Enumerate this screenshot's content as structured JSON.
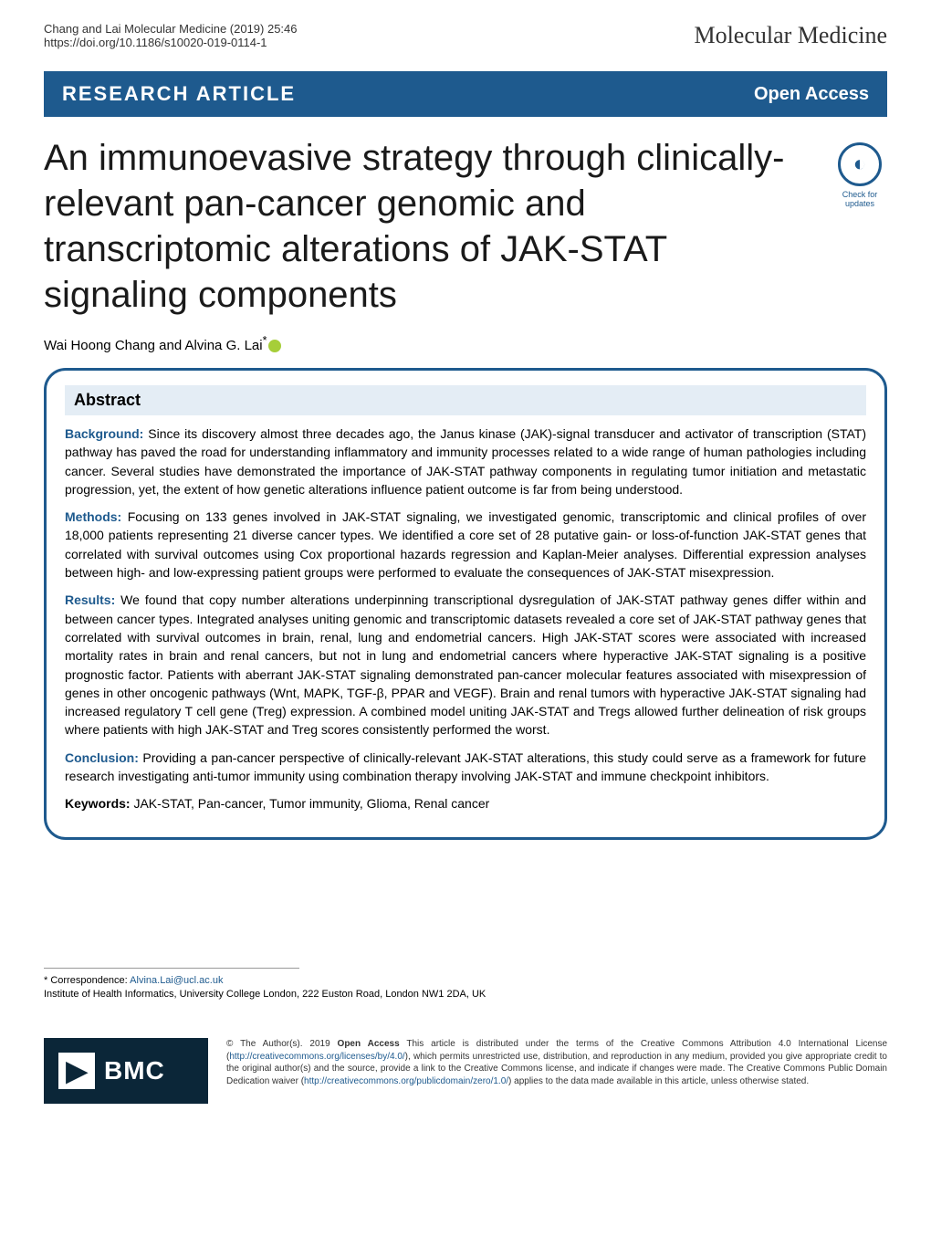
{
  "header": {
    "citation": "Chang and Lai Molecular Medicine         (2019) 25:46",
    "doi": "https://doi.org/10.1186/s10020-019-0114-1",
    "journal": "Molecular Medicine"
  },
  "article_bar": {
    "type": "RESEARCH ARTICLE",
    "access": "Open Access",
    "bar_color": "#1e5a8e"
  },
  "crossmark": {
    "label": "Check for updates"
  },
  "title": "An immunoevasive strategy through clinically-relevant pan-cancer genomic and transcriptomic alterations of JAK-STAT signaling components",
  "authors": "Wai Hoong Chang and Alvina G. Lai",
  "abstract": {
    "heading": "Abstract",
    "background_label": "Background:",
    "background": "Since its discovery almost three decades ago, the Janus kinase (JAK)-signal transducer and activator of transcription (STAT) pathway has paved the road for understanding inflammatory and immunity processes related to a wide range of human pathologies including cancer. Several studies have demonstrated the importance of JAK-STAT pathway components in regulating tumor initiation and metastatic progression, yet, the extent of how genetic alterations influence patient outcome is far from being understood.",
    "methods_label": "Methods:",
    "methods": "Focusing on 133 genes involved in JAK-STAT signaling, we investigated genomic, transcriptomic and clinical profiles of over 18,000 patients representing 21 diverse cancer types. We identified a core set of 28 putative gain- or loss-of-function JAK-STAT genes that correlated with survival outcomes using Cox proportional hazards regression and Kaplan-Meier analyses. Differential expression analyses between high- and low-expressing patient groups were performed to evaluate the consequences of JAK-STAT misexpression.",
    "results_label": "Results:",
    "results": "We found that copy number alterations underpinning transcriptional dysregulation of JAK-STAT pathway genes differ within and between cancer types. Integrated analyses uniting genomic and transcriptomic datasets revealed a core set of JAK-STAT pathway genes that correlated with survival outcomes in brain, renal, lung and endometrial cancers. High JAK-STAT scores were associated with increased mortality rates in brain and renal cancers, but not in lung and endometrial cancers where hyperactive JAK-STAT signaling is a positive prognostic factor. Patients with aberrant JAK-STAT signaling demonstrated pan-cancer molecular features associated with misexpression of genes in other oncogenic pathways (Wnt, MAPK, TGF-β, PPAR and VEGF). Brain and renal tumors with hyperactive JAK-STAT signaling had increased regulatory T cell gene (Treg) expression. A combined model uniting JAK-STAT and Tregs allowed further delineation of risk groups where patients with high JAK-STAT and Treg scores consistently performed the worst.",
    "conclusion_label": "Conclusion:",
    "conclusion": "Providing a pan-cancer perspective of clinically-relevant JAK-STAT alterations, this study could serve as a framework for future research investigating anti-tumor immunity using combination therapy involving JAK-STAT and immune checkpoint inhibitors.",
    "keywords_label": "Keywords:",
    "keywords": "JAK-STAT, Pan-cancer, Tumor immunity, Glioma, Renal cancer",
    "border_color": "#1e5a8e",
    "heading_bg": "#e4edf5"
  },
  "footer": {
    "correspondence_label": "* Correspondence: ",
    "correspondence_email": "Alvina.Lai@ucl.ac.uk",
    "affiliation": "Institute of Health Informatics, University College London, 222 Euston Road, London NW1 2DA, UK"
  },
  "bmc": {
    "logo_text": "BMC",
    "logo_bg": "#0b2638"
  },
  "license": {
    "text_1": "© The Author(s). 2019 ",
    "open_access_bold": "Open Access",
    "text_2": " This article is distributed under the terms of the Creative Commons Attribution 4.0 International License (",
    "link_1": "http://creativecommons.org/licenses/by/4.0/",
    "text_3": "), which permits unrestricted use, distribution, and reproduction in any medium, provided you give appropriate credit to the original author(s) and the source, provide a link to the Creative Commons license, and indicate if changes were made. The Creative Commons Public Domain Dedication waiver (",
    "link_2": "http://creativecommons.org/publicdomain/zero/1.0/",
    "text_4": ") applies to the data made available in this article, unless otherwise stated."
  }
}
